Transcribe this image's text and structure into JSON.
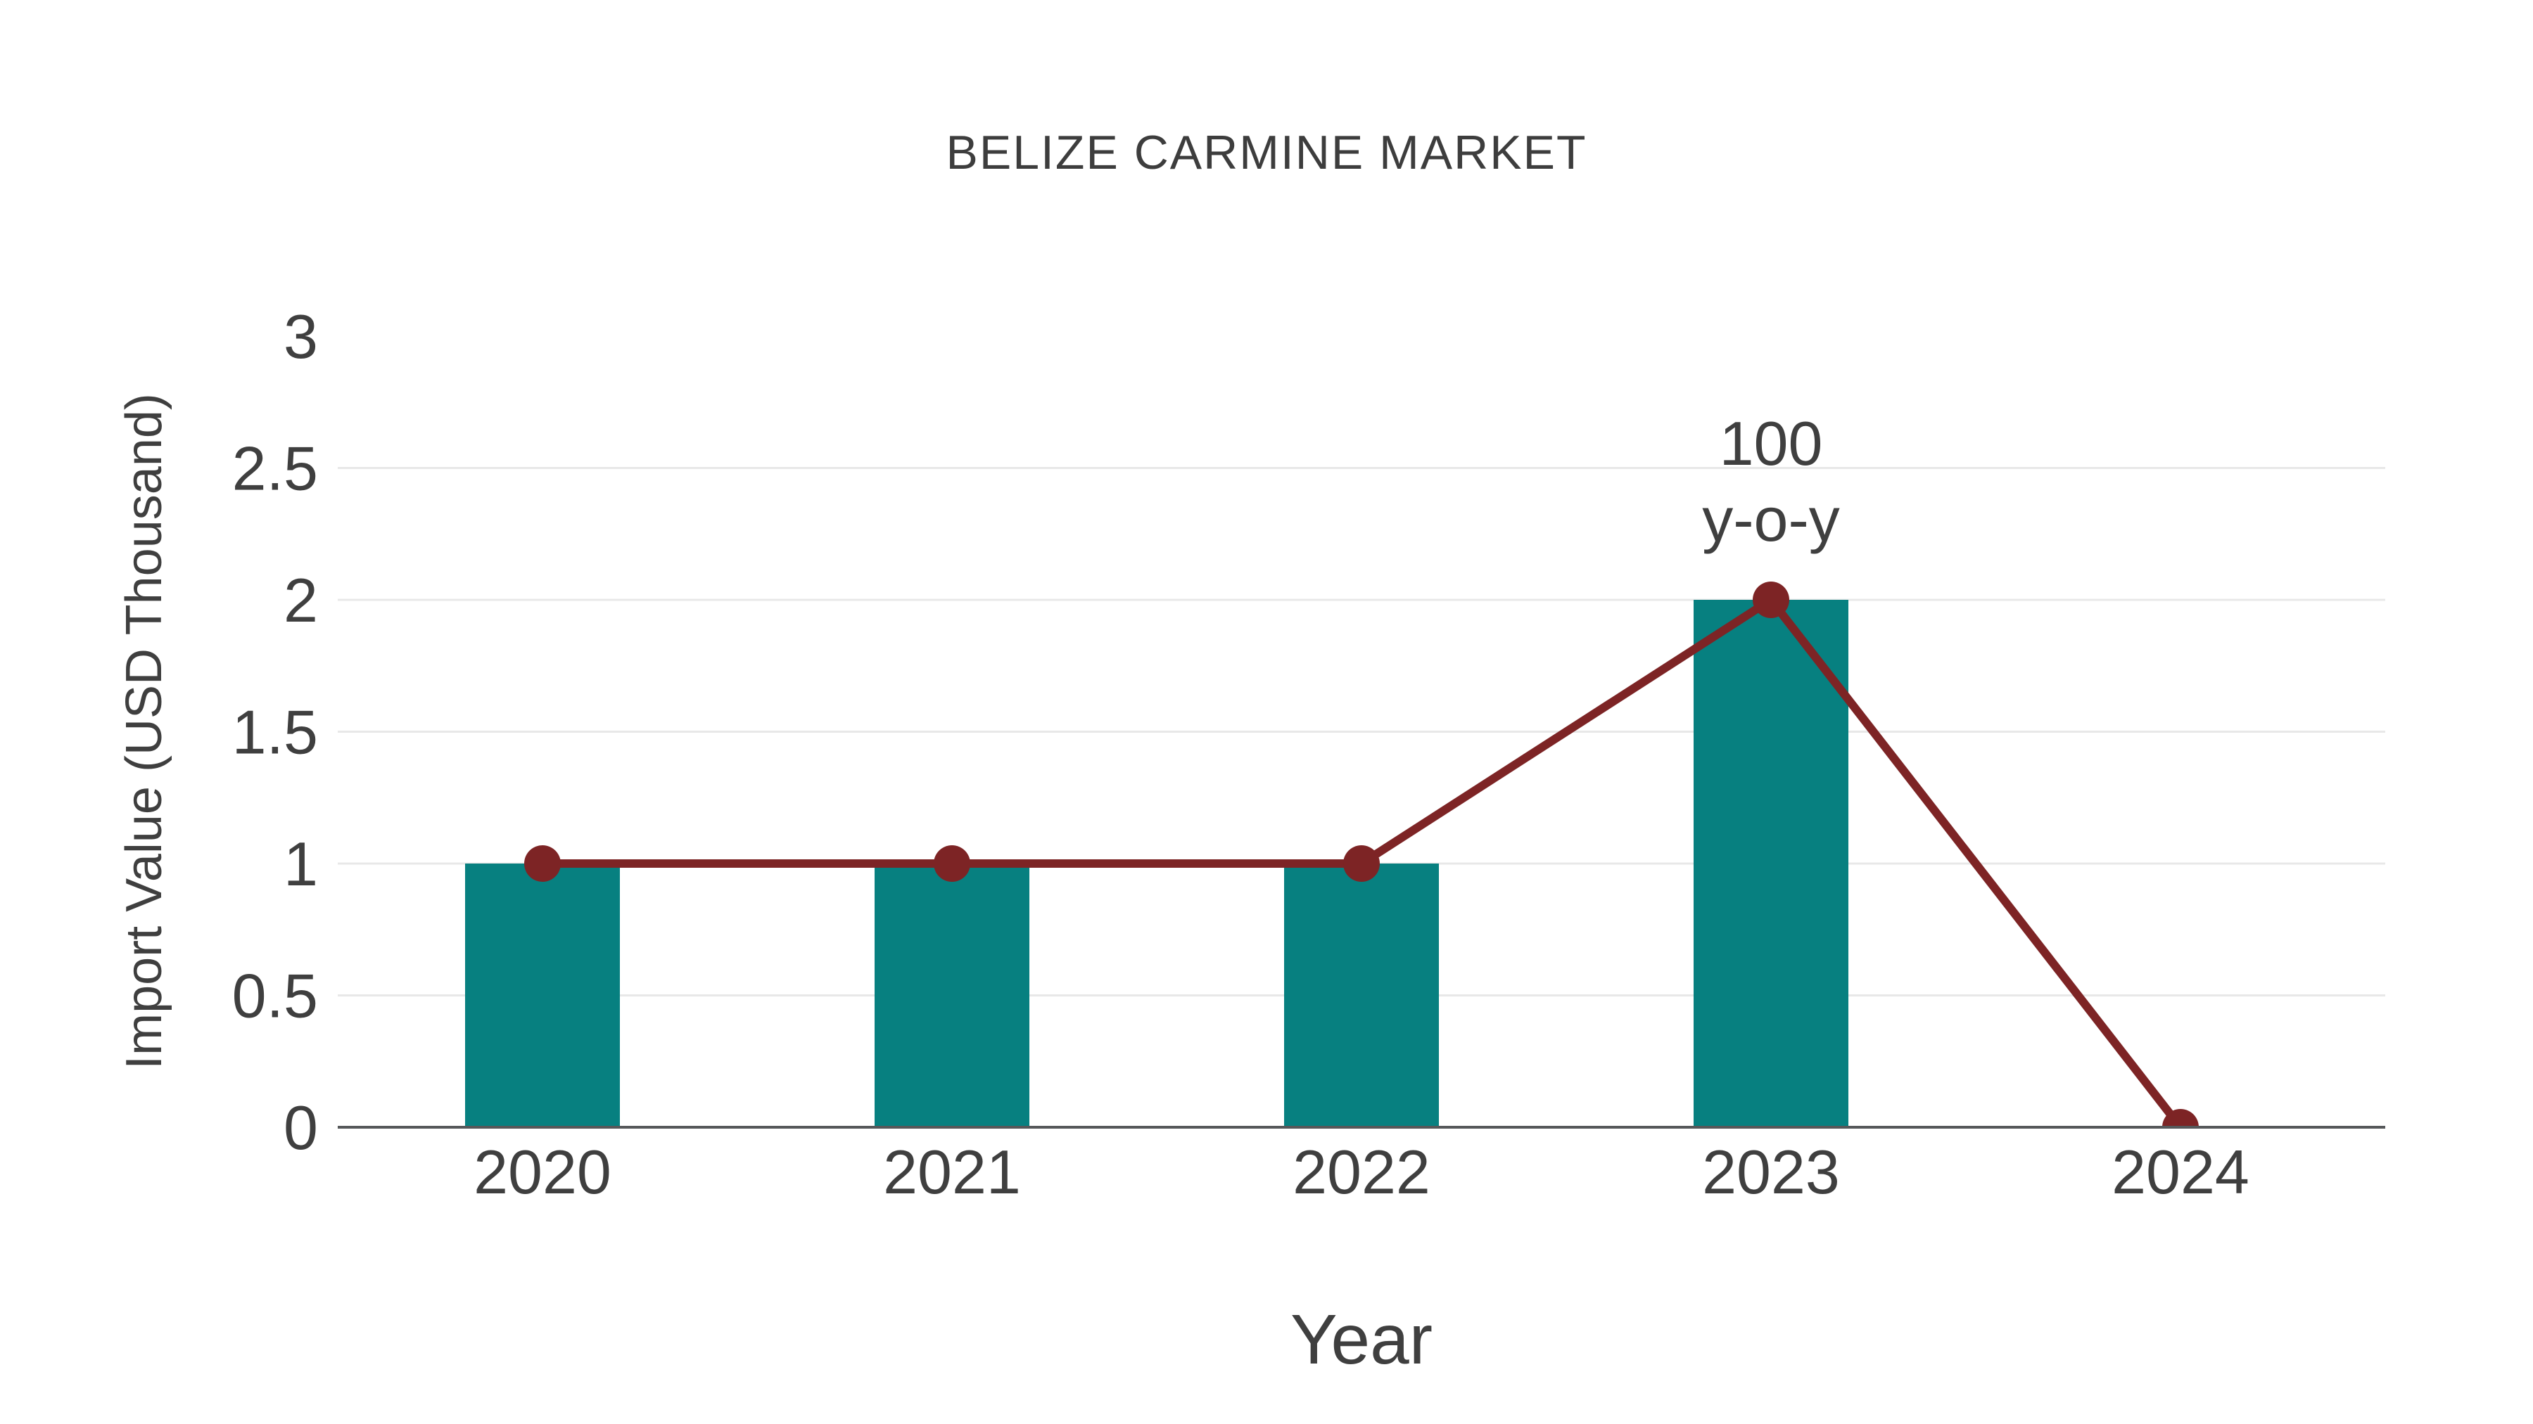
{
  "title": "BELIZE CARMINE MARKET",
  "colors": {
    "bar": "#078080",
    "line": "#7d2425",
    "grid": "#e8e8e8",
    "axis": "#56585a",
    "text": "#3f3f3f"
  },
  "chart_data": {
    "type": "bar",
    "title": "BELIZE CARMINE MARKET",
    "categories": [
      "2020",
      "2021",
      "2022",
      "2023",
      "2024"
    ],
    "series": [
      {
        "name": "Import Value bars",
        "type": "bar",
        "values": [
          1,
          1,
          1,
          2,
          0
        ]
      },
      {
        "name": "Import Value trend line",
        "type": "line",
        "values": [
          1,
          1,
          1,
          2,
          0
        ]
      }
    ],
    "xlabel": "Year",
    "ylabel": "Import Value (USD Thousand)",
    "ylim": [
      0,
      3
    ],
    "yticks": [
      0,
      0.5,
      1,
      1.5,
      2,
      2.5,
      3
    ],
    "grid": "horizontal gridlines at 0.5 intervals, none at 0 and 3",
    "legend": "none",
    "annotation": {
      "lines": [
        "100",
        "y-o-y"
      ],
      "category": "2023",
      "value": 2
    }
  }
}
